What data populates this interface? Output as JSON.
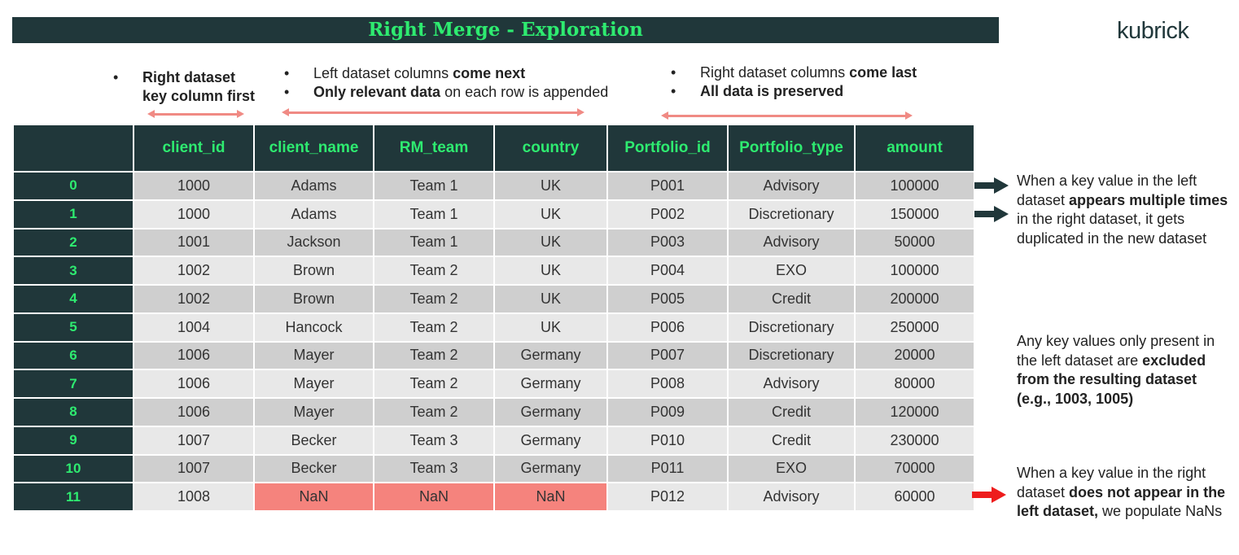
{
  "title": "Right Merge - Exploration",
  "logo": {
    "text": "kubrick"
  },
  "annotations": {
    "key_first": {
      "lines": [
        "Right dataset",
        "key column first"
      ]
    },
    "left_cols": {
      "line1": {
        "normal": "Left dataset columns ",
        "bold": "come next"
      },
      "line2": {
        "bold": "Only relevant data",
        "normal": " on each row is appended"
      }
    },
    "right_cols": {
      "line1": {
        "normal": "Right dataset columns ",
        "bold": "come last"
      },
      "line2": {
        "bold": "All data is preserved"
      }
    }
  },
  "table": {
    "columns": [
      "",
      "client_id",
      "client_name",
      "RM_team",
      "country",
      "Portfolio_id",
      "Portfolio_type",
      "amount"
    ],
    "rows": [
      [
        "0",
        "1000",
        "Adams",
        "Team 1",
        "UK",
        "P001",
        "Advisory",
        "100000"
      ],
      [
        "1",
        "1000",
        "Adams",
        "Team 1",
        "UK",
        "P002",
        "Discretionary",
        "150000"
      ],
      [
        "2",
        "1001",
        "Jackson",
        "Team 1",
        "UK",
        "P003",
        "Advisory",
        "50000"
      ],
      [
        "3",
        "1002",
        "Brown",
        "Team 2",
        "UK",
        "P004",
        "EXO",
        "100000"
      ],
      [
        "4",
        "1002",
        "Brown",
        "Team 2",
        "UK",
        "P005",
        "Credit",
        "200000"
      ],
      [
        "5",
        "1004",
        "Hancock",
        "Team 2",
        "UK",
        "P006",
        "Discretionary",
        "250000"
      ],
      [
        "6",
        "1006",
        "Mayer",
        "Team 2",
        "Germany",
        "P007",
        "Discretionary",
        "20000"
      ],
      [
        "7",
        "1006",
        "Mayer",
        "Team 2",
        "Germany",
        "P008",
        "Advisory",
        "80000"
      ],
      [
        "8",
        "1006",
        "Mayer",
        "Team 2",
        "Germany",
        "P009",
        "Credit",
        "120000"
      ],
      [
        "9",
        "1007",
        "Becker",
        "Team 3",
        "Germany",
        "P010",
        "Credit",
        "230000"
      ],
      [
        "10",
        "1007",
        "Becker",
        "Team 3",
        "Germany",
        "P011",
        "EXO",
        "70000"
      ],
      [
        "11",
        "1008",
        "NaN",
        "NaN",
        "NaN",
        "P012",
        "Advisory",
        "60000"
      ]
    ]
  },
  "notes": {
    "duplicates": {
      "p1": "When a key value in the left dataset ",
      "b1": "appears multiple times",
      "p2": " in the right dataset, it gets duplicated in the new dataset"
    },
    "excluded": {
      "p1": "Any key values only present in the left dataset are ",
      "b1": "excluded from the resulting dataset (e.g., 1003, 1005)"
    },
    "nans": {
      "p1": "When a key value in the right dataset ",
      "b1": "does not appear in the left dataset,",
      "p2": " we populate NaNs"
    }
  },
  "colors": {
    "dark": "#20373a",
    "accent_green": "#2eeb70",
    "salmon": "#f08a84",
    "nan_fill": "#f5837d",
    "red_arrow": "#ee1c1c"
  }
}
